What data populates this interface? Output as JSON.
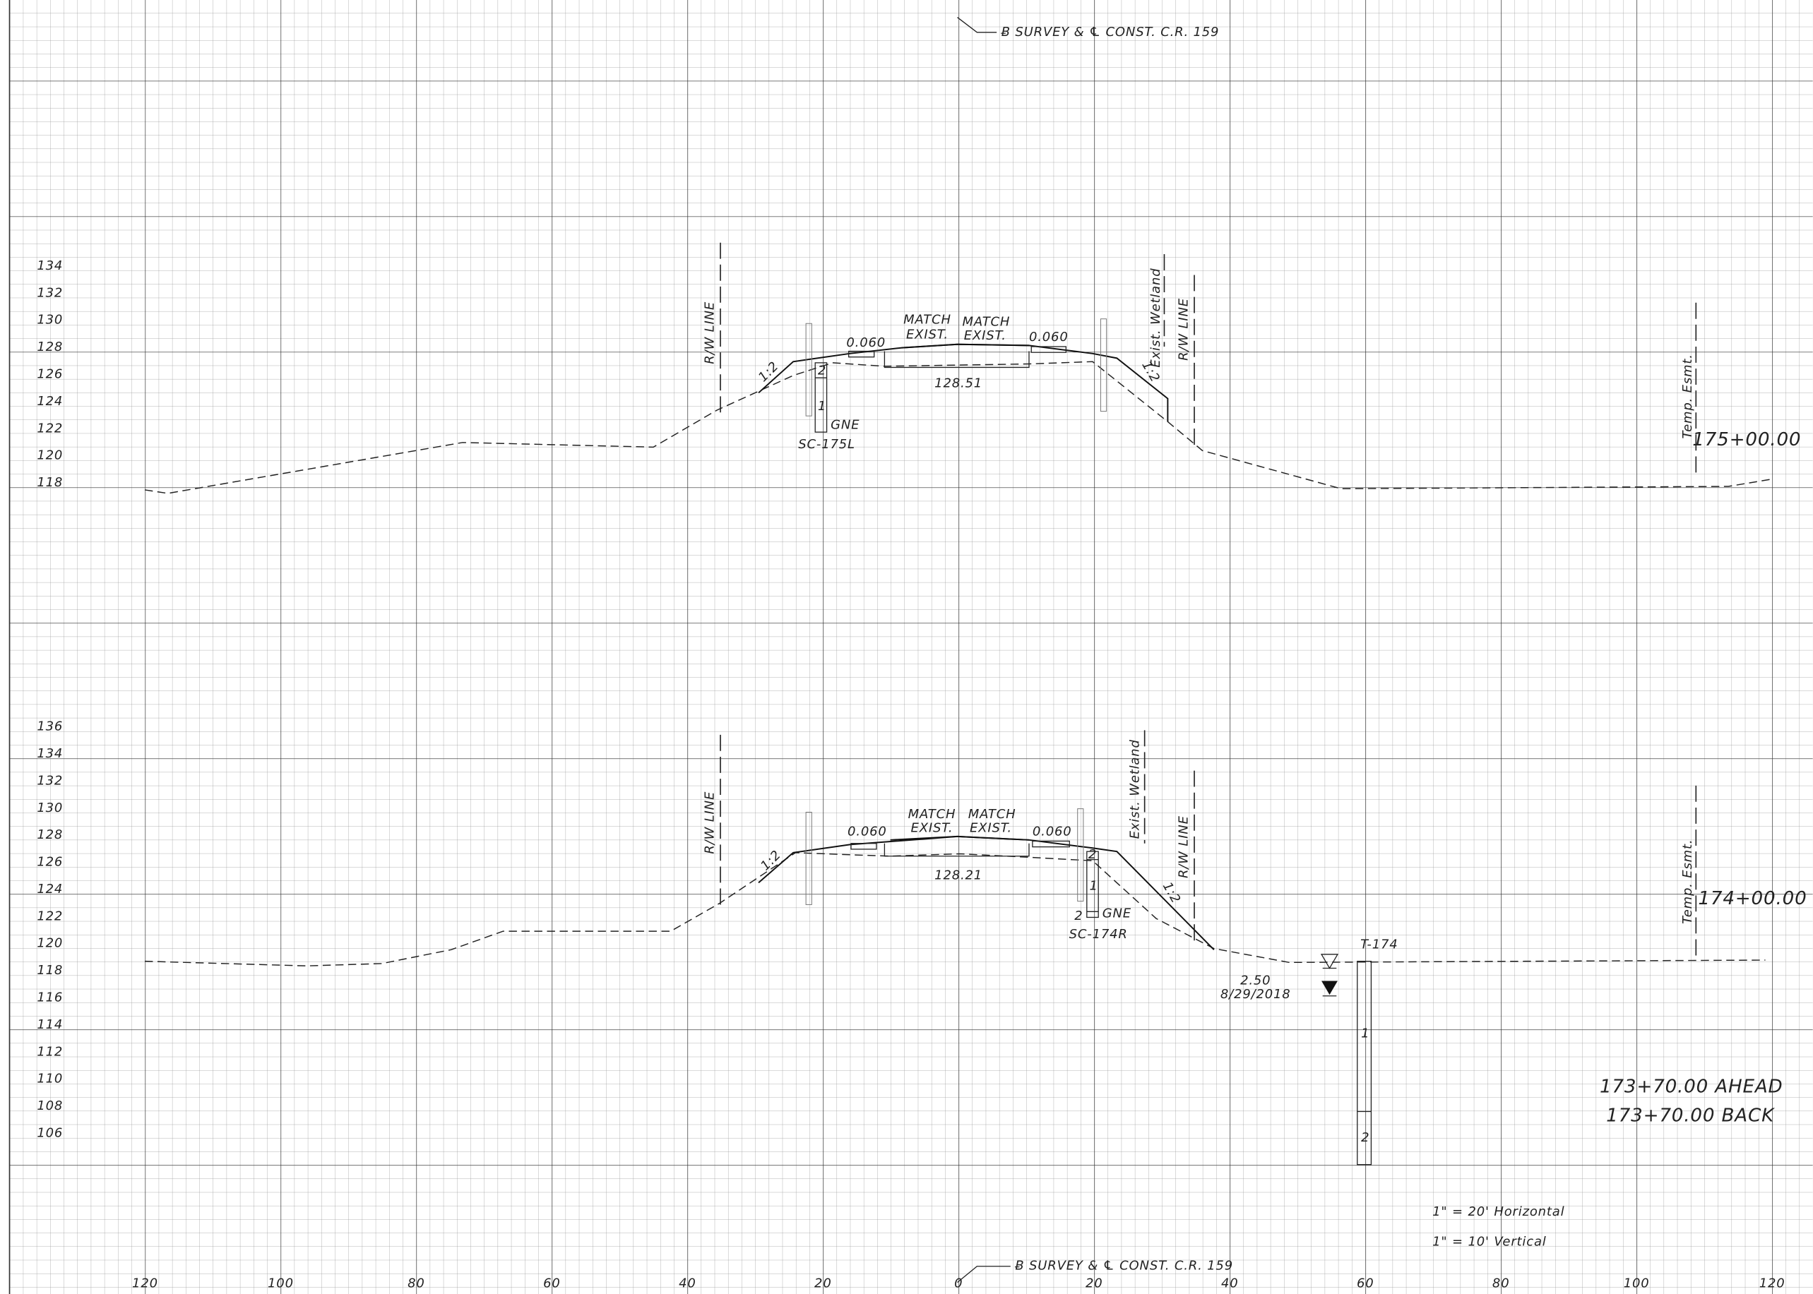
{
  "header": {
    "survey_note": "Ƀ SURVEY & ℄ CONST. C.R. 159"
  },
  "offset_axis": {
    "labels": [
      120,
      100,
      80,
      60,
      40,
      20,
      0,
      20,
      40,
      60,
      80,
      100,
      120
    ]
  },
  "sections": [
    {
      "station": "175+00.00",
      "elevations": [
        134,
        132,
        130,
        128,
        126,
        124,
        122,
        120,
        118
      ],
      "labels": {
        "rw_line_left": "R/W LINE",
        "slope_left": "1:2",
        "boring_top": "2",
        "boring_bottom": "1",
        "boring_type": "GNE",
        "boring_id": "SC-175L",
        "cross_slope_left": "0.060",
        "match_left_1": "MATCH",
        "match_left_2": "EXIST.",
        "match_right_1": "MATCH",
        "match_right_2": "EXIST.",
        "cross_slope_right": "0.060",
        "grade": "128.51",
        "wetland": "Exist. Wetland",
        "rw_line_right": "R/W LINE",
        "slope_right": "1:2",
        "easement": "Temp. Esmt."
      }
    },
    {
      "station": "174+00.00",
      "elevations": [
        136,
        134,
        132,
        130,
        128,
        126,
        124,
        122,
        120,
        118,
        116,
        114,
        112,
        110,
        108,
        106
      ],
      "labels": {
        "rw_line_left": "R/W LINE",
        "slope_left": "1:2",
        "cross_slope_left": "0.060",
        "match_left_1": "MATCH",
        "match_left_2": "EXIST.",
        "match_right_1": "MATCH",
        "match_right_2": "EXIST.",
        "cross_slope_right": "0.060",
        "grade": "128.21",
        "boring_top": "2",
        "boring_bottom": "1",
        "boring_base": "2",
        "boring_type": "GNE",
        "boring_id": "SC-174R",
        "wetland": "Exist. Wetland",
        "rw_line_right": "R/W LINE",
        "slope_right": "1:2",
        "test_hole": "T-174",
        "water_depth": "2.50",
        "water_date": "8/29/2018",
        "layer_1": "1",
        "layer_2": "2",
        "easement": "Temp. Esmt."
      }
    }
  ],
  "footer": {
    "station_ahead": "173+70.00 AHEAD",
    "station_back": "173+70.00 BACK",
    "scale_horizontal": "1\" = 20' Horizontal",
    "scale_vertical": "1\" = 10' Vertical",
    "survey_note": "Ƀ SURVEY & ℄ CONST. C.R. 159"
  }
}
